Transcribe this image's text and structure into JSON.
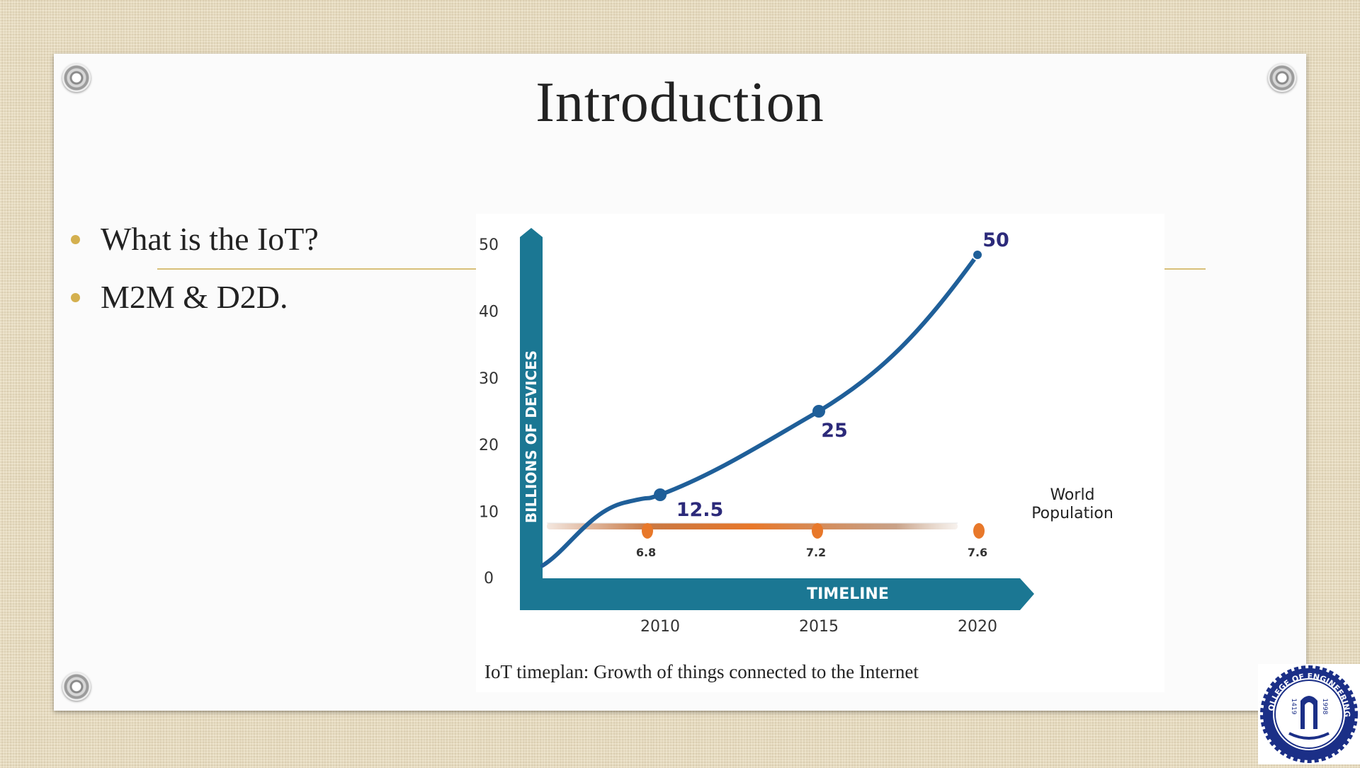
{
  "slide": {
    "title": "Introduction",
    "bullets": [
      "What is the IoT?",
      "M2M & D2D."
    ],
    "caption": "IoT timeplan: Growth of things connected to the Internet"
  },
  "logo": {
    "ring_text": "COLLEGE OF ENGINEERING",
    "year_left": "1419",
    "year_right": "1998"
  },
  "colors": {
    "axis_teal": "#1b7793",
    "curve_blue": "#1f5f99",
    "label_navy": "#2c2a7a",
    "population_orange": "#e8782a",
    "bullet_gold": "#d4b04f"
  },
  "chart_data": {
    "type": "line",
    "ylabel": "BILLIONS OF DEVICES",
    "xlabel": "TIMELINE",
    "ylim": [
      0,
      50
    ],
    "y_ticks": [
      "0",
      "10",
      "20",
      "30",
      "40",
      "50"
    ],
    "x_ticks": [
      "2010",
      "2015",
      "2020"
    ],
    "series": [
      {
        "name": "",
        "x": [
          2010,
          2015,
          2020
        ],
        "values": [
          12.5,
          25,
          50
        ],
        "labels": [
          "12.5",
          "25",
          "50"
        ]
      },
      {
        "name": "World Population",
        "x": [
          2010,
          2015,
          2020
        ],
        "values": [
          6.8,
          7.2,
          7.6
        ],
        "labels": [
          "6.8",
          "7.2",
          "7.6"
        ]
      }
    ],
    "population_label_lines": [
      "World",
      "Population"
    ],
    "grid": false
  }
}
